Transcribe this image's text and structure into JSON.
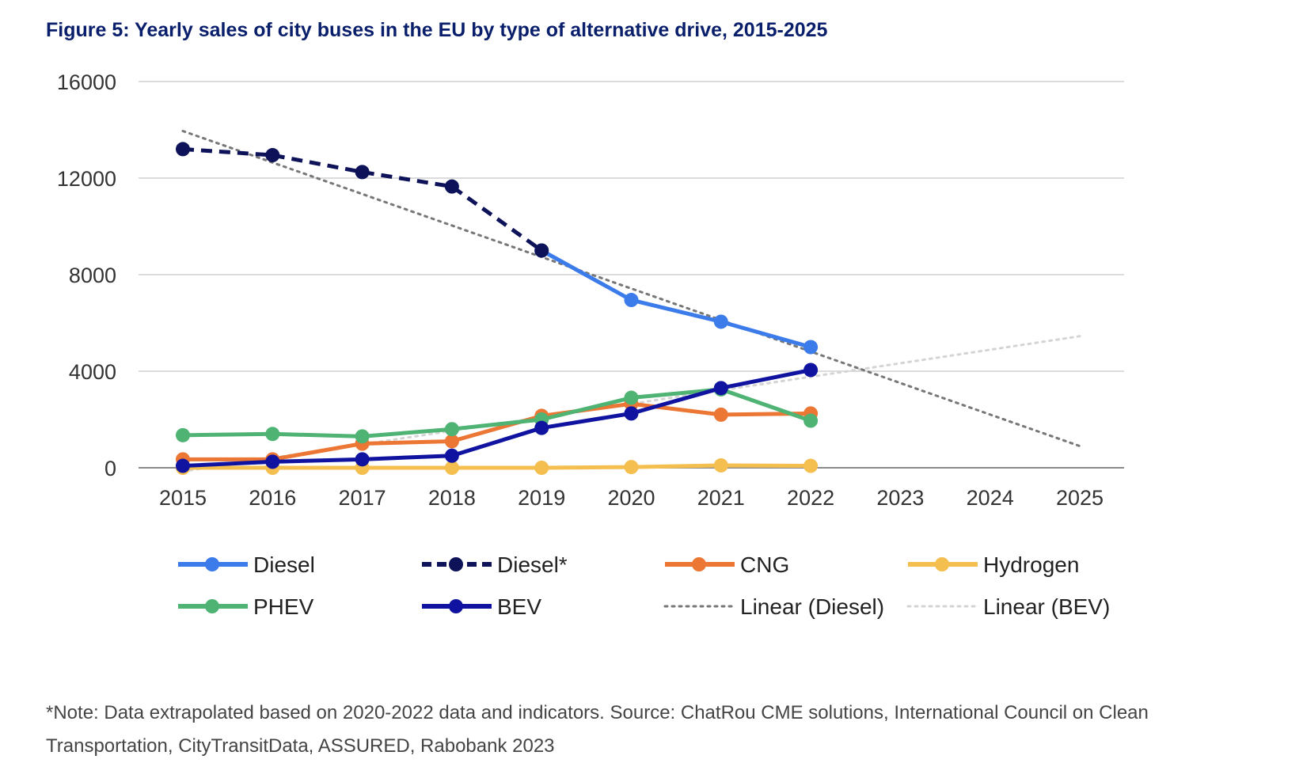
{
  "figure": {
    "title": "Figure 5: Yearly sales of city buses in the EU by type of alternative drive, 2015-2025",
    "note": "*Note: Data extrapolated based on 2020-2022 data and indicators. Source: ChatRou CME solutions, International Council on Clean Transportation, CityTransitData, ASSURED, Rabobank 2023"
  },
  "chart_data": {
    "type": "line",
    "title": "Figure 5: Yearly sales of city buses in the EU by type of alternative drive, 2015-2025",
    "xlabel": "",
    "ylabel": "",
    "x": [
      2015,
      2016,
      2017,
      2018,
      2019,
      2020,
      2021,
      2022,
      2023,
      2024,
      2025
    ],
    "ylim": [
      0,
      16000
    ],
    "yticks": [
      0,
      4000,
      8000,
      12000,
      16000
    ],
    "grid": true,
    "legend_position": "bottom",
    "series": [
      {
        "name": "Diesel",
        "style": "solid",
        "color": "#3b7bea",
        "x": [
          2019,
          2020,
          2021,
          2022
        ],
        "values": [
          9000,
          6950,
          6050,
          5000
        ]
      },
      {
        "name": "Diesel*",
        "style": "dashed",
        "color": "#0d1259",
        "x": [
          2015,
          2016,
          2017,
          2018,
          2019
        ],
        "values": [
          13200,
          12950,
          12250,
          11650,
          9000
        ]
      },
      {
        "name": "CNG",
        "style": "solid",
        "color": "#ec7633",
        "x": [
          2015,
          2016,
          2017,
          2018,
          2019,
          2020,
          2021,
          2022
        ],
        "values": [
          350,
          350,
          1000,
          1100,
          2150,
          2650,
          2200,
          2250
        ]
      },
      {
        "name": "Hydrogen",
        "style": "solid",
        "color": "#f4bf4f",
        "x": [
          2015,
          2016,
          2017,
          2018,
          2019,
          2020,
          2021,
          2022
        ],
        "values": [
          0,
          0,
          0,
          0,
          0,
          30,
          100,
          80
        ]
      },
      {
        "name": "PHEV",
        "style": "solid",
        "color": "#4fb374",
        "x": [
          2015,
          2016,
          2017,
          2018,
          2019,
          2020,
          2021,
          2022
        ],
        "values": [
          1350,
          1400,
          1300,
          1600,
          2000,
          2900,
          3250,
          1950
        ]
      },
      {
        "name": "BEV",
        "style": "solid",
        "color": "#0f13a0",
        "x": [
          2015,
          2016,
          2017,
          2018,
          2019,
          2020,
          2021,
          2022
        ],
        "values": [
          80,
          250,
          350,
          500,
          1650,
          2250,
          3300,
          4050
        ]
      },
      {
        "name": "Linear (Diesel)",
        "style": "dotted",
        "color": "#777777",
        "x": [
          2015,
          2025
        ],
        "values": [
          13950,
          900
        ]
      },
      {
        "name": "Linear (BEV)",
        "style": "dotted",
        "color": "#d4d4d4",
        "x": [
          2015,
          2025
        ],
        "values": [
          -150,
          5450
        ]
      }
    ]
  }
}
